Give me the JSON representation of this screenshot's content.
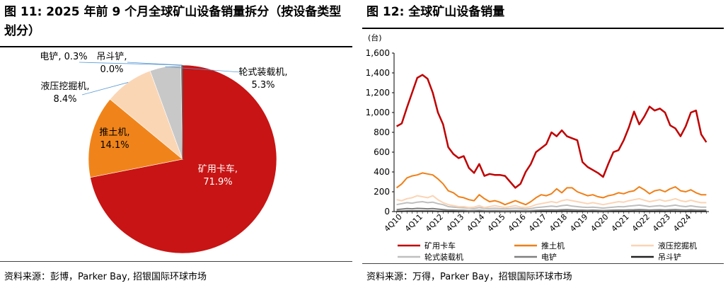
{
  "left": {
    "title": "图 11: 2025 年前 9 个月全球矿山设备销量拆分（按设备类型划分）",
    "source": "资料来源：彭博，Parker Bay, 招银国际环球市场"
  },
  "right": {
    "title": "图 12: 全球矿山设备销量",
    "source": "资料来源：万得，Parker Bay，招银国际环球市场"
  },
  "chart_data": [
    {
      "type": "pie",
      "slices": [
        {
          "label": "矿用卡车",
          "value": 71.9,
          "label_text": "71.9%",
          "color": "#c81414"
        },
        {
          "label": "推土机",
          "value": 14.1,
          "label_text": "14.1%",
          "color": "#f0841a"
        },
        {
          "label": "液压挖掘机",
          "value": 8.4,
          "label_text": "8.4%",
          "color": "#fbd6b5"
        },
        {
          "label": "轮式装载机",
          "value": 5.3,
          "label_text": "5.3%",
          "color": "#c8c8c8"
        },
        {
          "label": "电铲",
          "value": 0.3,
          "label_text": "0.3%",
          "color": "#888888"
        },
        {
          "label": "吊斗铲",
          "value": 0.0,
          "label_text": "0.0%",
          "color": "#333333"
        }
      ]
    },
    {
      "type": "line",
      "unit": "(台)",
      "ylim": [
        0,
        1600
      ],
      "y_ticks": [
        "0",
        "200",
        "400",
        "600",
        "800",
        "1,000",
        "1,200",
        "1,400",
        "1,600"
      ],
      "x_labels": [
        "4Q10",
        "4Q11",
        "4Q12",
        "4Q13",
        "4Q14",
        "4Q15",
        "4Q16",
        "4Q17",
        "4Q18",
        "4Q19",
        "4Q20",
        "4Q21",
        "4Q22",
        "4Q23",
        "4Q24"
      ],
      "legend_position": "bottom",
      "series": [
        {
          "name": "矿用卡车",
          "color": "#c00000",
          "width": 2.5,
          "values": [
            860,
            890,
            1050,
            1200,
            1350,
            1380,
            1340,
            1200,
            1000,
            880,
            650,
            580,
            540,
            560,
            440,
            390,
            480,
            360,
            380,
            370,
            370,
            360,
            300,
            240,
            280,
            400,
            480,
            600,
            640,
            680,
            800,
            760,
            820,
            760,
            740,
            720,
            500,
            450,
            420,
            390,
            350,
            480,
            600,
            620,
            720,
            850,
            1010,
            880,
            960,
            1060,
            1020,
            1040,
            1000,
            870,
            840,
            760,
            860,
            1000,
            1020,
            780,
            700
          ]
        },
        {
          "name": "推土机",
          "color": "#f07f17",
          "width": 2,
          "values": [
            240,
            280,
            340,
            360,
            370,
            390,
            380,
            370,
            330,
            280,
            210,
            190,
            150,
            140,
            120,
            110,
            170,
            130,
            100,
            110,
            95,
            70,
            90,
            110,
            90,
            70,
            100,
            140,
            170,
            160,
            180,
            230,
            190,
            240,
            240,
            200,
            180,
            160,
            170,
            150,
            140,
            160,
            170,
            190,
            180,
            200,
            210,
            250,
            220,
            180,
            210,
            220,
            200,
            230,
            250,
            210,
            200,
            220,
            190,
            170,
            170
          ]
        },
        {
          "name": "液压挖掘机",
          "color": "#fbd4b4",
          "width": 2,
          "values": [
            120,
            110,
            130,
            140,
            160,
            150,
            140,
            160,
            120,
            90,
            70,
            60,
            50,
            50,
            40,
            45,
            60,
            40,
            50,
            60,
            50,
            40,
            50,
            60,
            45,
            40,
            50,
            70,
            80,
            90,
            100,
            90,
            110,
            120,
            110,
            100,
            90,
            80,
            90,
            80,
            70,
            80,
            90,
            100,
            95,
            110,
            120,
            130,
            115,
            100,
            110,
            120,
            105,
            115,
            130,
            110,
            100,
            115,
            100,
            90,
            90
          ]
        },
        {
          "name": "轮式装载机",
          "color": "#bfbfbf",
          "width": 2,
          "values": [
            70,
            80,
            90,
            85,
            95,
            100,
            90,
            95,
            80,
            70,
            50,
            45,
            40,
            38,
            35,
            30,
            40,
            32,
            30,
            34,
            30,
            28,
            30,
            35,
            30,
            25,
            30,
            40,
            45,
            50,
            55,
            50,
            60,
            65,
            55,
            50,
            45,
            42,
            45,
            40,
            35,
            40,
            45,
            50,
            48,
            55,
            60,
            65,
            58,
            50,
            55,
            60,
            52,
            58,
            65,
            55,
            50,
            58,
            50,
            45,
            45
          ]
        },
        {
          "name": "电铲",
          "color": "#7f7f7f",
          "width": 2,
          "values": [
            20,
            25,
            30,
            28,
            32,
            30,
            28,
            30,
            25,
            20,
            15,
            14,
            12,
            12,
            10,
            10,
            12,
            10,
            9,
            10,
            9,
            8,
            9,
            10,
            9,
            8,
            9,
            12,
            14,
            15,
            16,
            15,
            18,
            20,
            17,
            15,
            14,
            13,
            14,
            12,
            11,
            12,
            14,
            15,
            15,
            17,
            18,
            20,
            18,
            15,
            17,
            18,
            16,
            18,
            20,
            17,
            15,
            18,
            15,
            14,
            14
          ]
        },
        {
          "name": "吊斗铲",
          "color": "#222222",
          "width": 2,
          "values": [
            3,
            3,
            4,
            4,
            4,
            4,
            4,
            4,
            3,
            3,
            2,
            2,
            2,
            2,
            2,
            2,
            2,
            2,
            1,
            2,
            1,
            1,
            1,
            2,
            1,
            1,
            1,
            2,
            2,
            2,
            2,
            2,
            3,
            3,
            2,
            2,
            2,
            2,
            2,
            2,
            1,
            2,
            2,
            2,
            2,
            2,
            3,
            3,
            2,
            2,
            2,
            3,
            2,
            3,
            3,
            2,
            2,
            3,
            2,
            2,
            2
          ]
        }
      ]
    }
  ]
}
